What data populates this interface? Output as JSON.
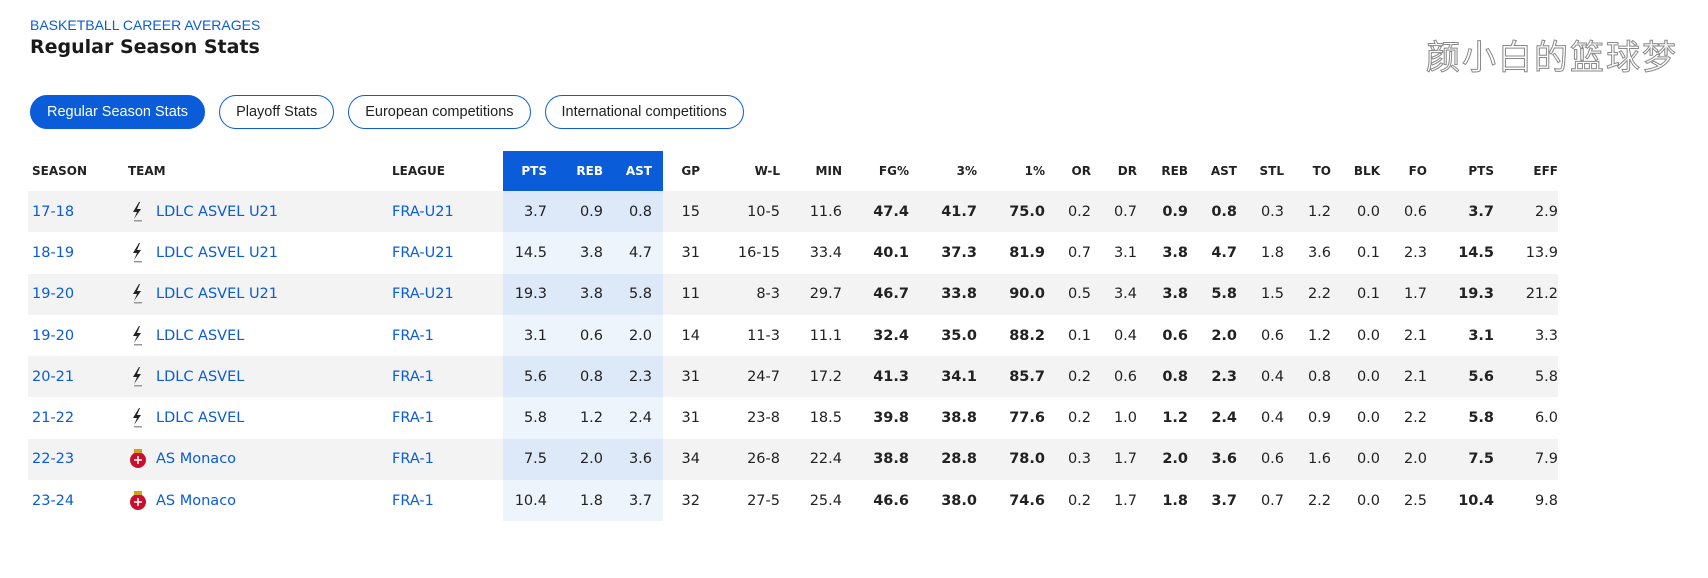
{
  "header": {
    "kicker": "BASKETBALL CAREER AVERAGES",
    "title": "Regular Season Stats"
  },
  "tabs": [
    {
      "label": "Regular Season Stats",
      "active": true
    },
    {
      "label": "Playoff Stats"
    },
    {
      "label": "European competitions"
    },
    {
      "label": "International competitions"
    }
  ],
  "columns": [
    "SEASON",
    "TEAM",
    "LEAGUE",
    "PTS",
    "REB",
    "AST",
    "GP",
    "W-L",
    "MIN",
    "FG%",
    "3%",
    "1%",
    "OR",
    "DR",
    "REB",
    "AST",
    "STL",
    "TO",
    "BLK",
    "FO",
    "PTS",
    "EFF"
  ],
  "colors": {
    "accent": "#0a5cd8",
    "asvel_icon": "#222222",
    "monaco_icon": "#c8102e"
  },
  "rows": [
    [
      "17-18",
      "LDLC ASVEL U21",
      "FRA-U21",
      "3.7",
      "0.9",
      "0.8",
      "15",
      "10-5",
      "11.6",
      "47.4",
      "41.7",
      "75.0",
      "0.2",
      "0.7",
      "0.9",
      "0.8",
      "0.3",
      "1.2",
      "0.0",
      "0.6",
      "3.7",
      "2.9"
    ],
    [
      "18-19",
      "LDLC ASVEL U21",
      "FRA-U21",
      "14.5",
      "3.8",
      "4.7",
      "31",
      "16-15",
      "33.4",
      "40.1",
      "37.3",
      "81.9",
      "0.7",
      "3.1",
      "3.8",
      "4.7",
      "1.8",
      "3.6",
      "0.1",
      "2.3",
      "14.5",
      "13.9"
    ],
    [
      "19-20",
      "LDLC ASVEL U21",
      "FRA-U21",
      "19.3",
      "3.8",
      "5.8",
      "11",
      "8-3",
      "29.7",
      "46.7",
      "33.8",
      "90.0",
      "0.5",
      "3.4",
      "3.8",
      "5.8",
      "1.5",
      "2.2",
      "0.1",
      "1.7",
      "19.3",
      "21.2"
    ],
    [
      "19-20",
      "LDLC ASVEL",
      "FRA-1",
      "3.1",
      "0.6",
      "2.0",
      "14",
      "11-3",
      "11.1",
      "32.4",
      "35.0",
      "88.2",
      "0.1",
      "0.4",
      "0.6",
      "2.0",
      "0.6",
      "1.2",
      "0.0",
      "2.1",
      "3.1",
      "3.3"
    ],
    [
      "20-21",
      "LDLC ASVEL",
      "FRA-1",
      "5.6",
      "0.8",
      "2.3",
      "31",
      "24-7",
      "17.2",
      "41.3",
      "34.1",
      "85.7",
      "0.2",
      "0.6",
      "0.8",
      "2.3",
      "0.4",
      "0.8",
      "0.0",
      "2.1",
      "5.6",
      "5.8"
    ],
    [
      "21-22",
      "LDLC ASVEL",
      "FRA-1",
      "5.8",
      "1.2",
      "2.4",
      "31",
      "23-8",
      "18.5",
      "39.8",
      "38.8",
      "77.6",
      "0.2",
      "1.0",
      "1.2",
      "2.4",
      "0.4",
      "0.9",
      "0.0",
      "2.2",
      "5.8",
      "6.0"
    ],
    [
      "22-23",
      "AS Monaco",
      "FRA-1",
      "7.5",
      "2.0",
      "3.6",
      "34",
      "26-8",
      "22.4",
      "38.8",
      "28.8",
      "78.0",
      "0.3",
      "1.7",
      "2.0",
      "3.6",
      "0.6",
      "1.6",
      "0.0",
      "2.0",
      "7.5",
      "7.9"
    ],
    [
      "23-24",
      "AS Monaco",
      "FRA-1",
      "10.4",
      "1.8",
      "3.7",
      "32",
      "27-5",
      "25.4",
      "46.6",
      "38.0",
      "74.6",
      "0.2",
      "1.7",
      "1.8",
      "3.7",
      "0.7",
      "2.2",
      "0.0",
      "2.5",
      "10.4",
      "9.8"
    ]
  ],
  "watermark": "颜小白的篮球梦"
}
